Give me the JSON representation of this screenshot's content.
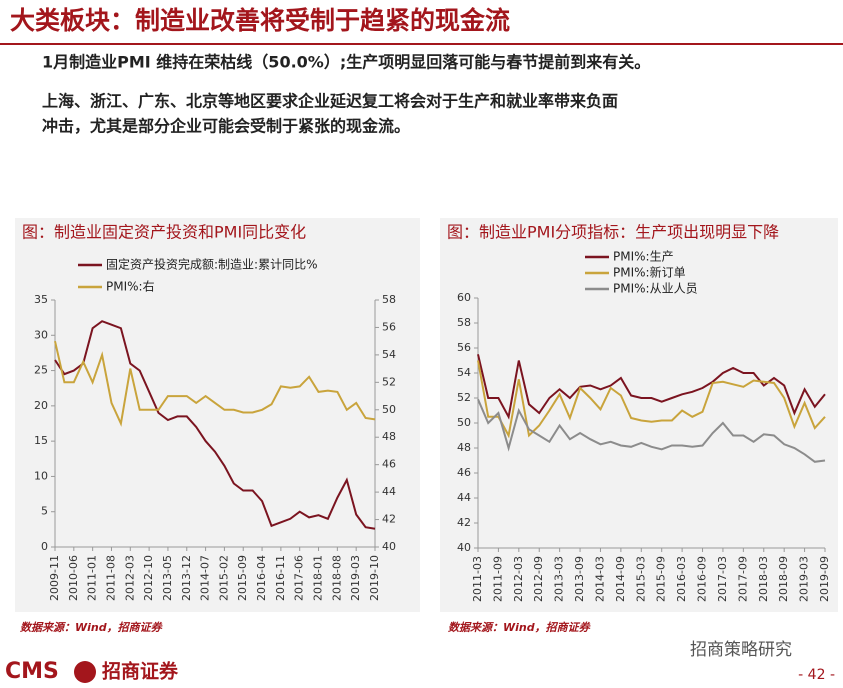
{
  "header": {
    "title": "大类板块：制造业改善将受制于趋紧的现金流"
  },
  "paragraphs": [
    "1月制造业PMI 维持在荣枯线（50.0%）;生产项明显回落可能与春节提前到来有关。",
    "上海、浙江、广东、北京等地区要求企业延迟复工将会对于生产和就业率带来负面",
    "冲击，尤其是部分企业可能会受制于紧张的现金流。"
  ],
  "chart_data": [
    {
      "type": "line",
      "title": "图：制造业固定资产投资和PMI同比变化",
      "categories": [
        "2009-11",
        null,
        "2010-06",
        null,
        "2011-01",
        null,
        "2011-08",
        null,
        "2012-03",
        null,
        "2012-10",
        null,
        "2013-05",
        null,
        "2013-12",
        null,
        "2014-07",
        null,
        "2015-02",
        null,
        "2015-09",
        null,
        "2016-04",
        null,
        "2016-11",
        null,
        "2017-06",
        null,
        "2018-01",
        null,
        "2018-08",
        null,
        "2019-03",
        null,
        "2019-10"
      ],
      "series": [
        {
          "name": "固定资产投资完成额:制造业:累计同比%",
          "color": "#7b1420",
          "values": [
            26.5,
            24.5,
            25,
            26,
            31,
            32,
            31.5,
            31,
            26,
            25,
            22,
            19,
            18,
            18.5,
            18.5,
            17,
            15,
            13.5,
            11.5,
            9,
            8,
            8,
            6.5,
            3,
            3.5,
            4,
            5,
            4.2,
            4.5,
            4,
            7,
            9.5,
            4.6,
            2.8,
            2.6
          ]
        },
        {
          "name": "PMI%:右",
          "color": "#c9a43c",
          "axis": "y2",
          "values": [
            55,
            52,
            52,
            53.5,
            52,
            54,
            50.5,
            49,
            53,
            50,
            50,
            50,
            51,
            51,
            51,
            50.5,
            51,
            50.5,
            50,
            50,
            49.8,
            49.8,
            50,
            50.4,
            51.7,
            51.6,
            51.7,
            52.4,
            51.3,
            51.4,
            51.3,
            50,
            50.5,
            49.4,
            49.3
          ]
        }
      ],
      "ylim": [
        0,
        35
      ],
      "yticks": [
        0,
        5,
        10,
        15,
        20,
        25,
        30,
        35
      ],
      "y2lim": [
        40,
        58
      ],
      "y2ticks": [
        40,
        42,
        44,
        46,
        48,
        50,
        52,
        54,
        56,
        58
      ]
    },
    {
      "type": "line",
      "title": "图：制造业PMI分项指标：生产项出现明显下降",
      "categories": [
        "2011-03",
        null,
        "2011-09",
        null,
        "2012-03",
        null,
        "2012-09",
        null,
        "2013-03",
        null,
        "2013-09",
        null,
        "2014-03",
        null,
        "2014-09",
        null,
        "2015-03",
        null,
        "2015-09",
        null,
        "2016-03",
        null,
        "2016-09",
        null,
        "2017-03",
        null,
        "2017-09",
        null,
        "2018-03",
        null,
        "2018-09",
        null,
        "2019-03",
        null,
        "2019-09"
      ],
      "series": [
        {
          "name": "PMI%:生产",
          "color": "#7b1420",
          "values": [
            55.5,
            52,
            52,
            50.5,
            55,
            51.5,
            50.8,
            52,
            52.7,
            52,
            52.9,
            53,
            52.7,
            53,
            53.6,
            52.2,
            52,
            52,
            51.7,
            52,
            52.3,
            52.5,
            52.8,
            53.3,
            54,
            54.4,
            54,
            54,
            53,
            53.6,
            53,
            50.8,
            52.7,
            51.3,
            52.3
          ]
        },
        {
          "name": "PMI%:新订单",
          "color": "#c9a43c",
          "values": [
            55,
            50.5,
            50.5,
            49,
            53.5,
            49,
            49.8,
            51,
            52.3,
            50.4,
            52.8,
            52,
            51.1,
            52.8,
            52.2,
            50.4,
            50.2,
            50.1,
            50.2,
            50.2,
            51,
            50.5,
            50.9,
            53.2,
            53.3,
            53.1,
            52.9,
            53.4,
            53.3,
            53.2,
            52,
            49.7,
            51.6,
            49.6,
            50.5
          ]
        },
        {
          "name": "PMI%:从业人员",
          "color": "#8c8c8c",
          "values": [
            51.9,
            50,
            50.8,
            48,
            51,
            49.5,
            49,
            48.5,
            49.8,
            48.7,
            49.2,
            48.7,
            48.3,
            48.5,
            48.2,
            48.1,
            48.4,
            48.1,
            47.9,
            48.2,
            48.2,
            48.1,
            48.2,
            49.2,
            50,
            49,
            49,
            48.5,
            49.1,
            49,
            48.3,
            48,
            47.5,
            46.9,
            47
          ]
        }
      ],
      "ylim": [
        40,
        60
      ],
      "yticks": [
        40,
        42,
        44,
        46,
        48,
        50,
        52,
        54,
        56,
        58,
        60
      ]
    }
  ],
  "sources": [
    "数据来源：Wind，招商证券",
    "数据来源：Wind，招商证券"
  ],
  "footer": {
    "logo": "CMS",
    "brand": "招商证券",
    "watermark": "招商策略研究",
    "page": "- 42 -"
  }
}
